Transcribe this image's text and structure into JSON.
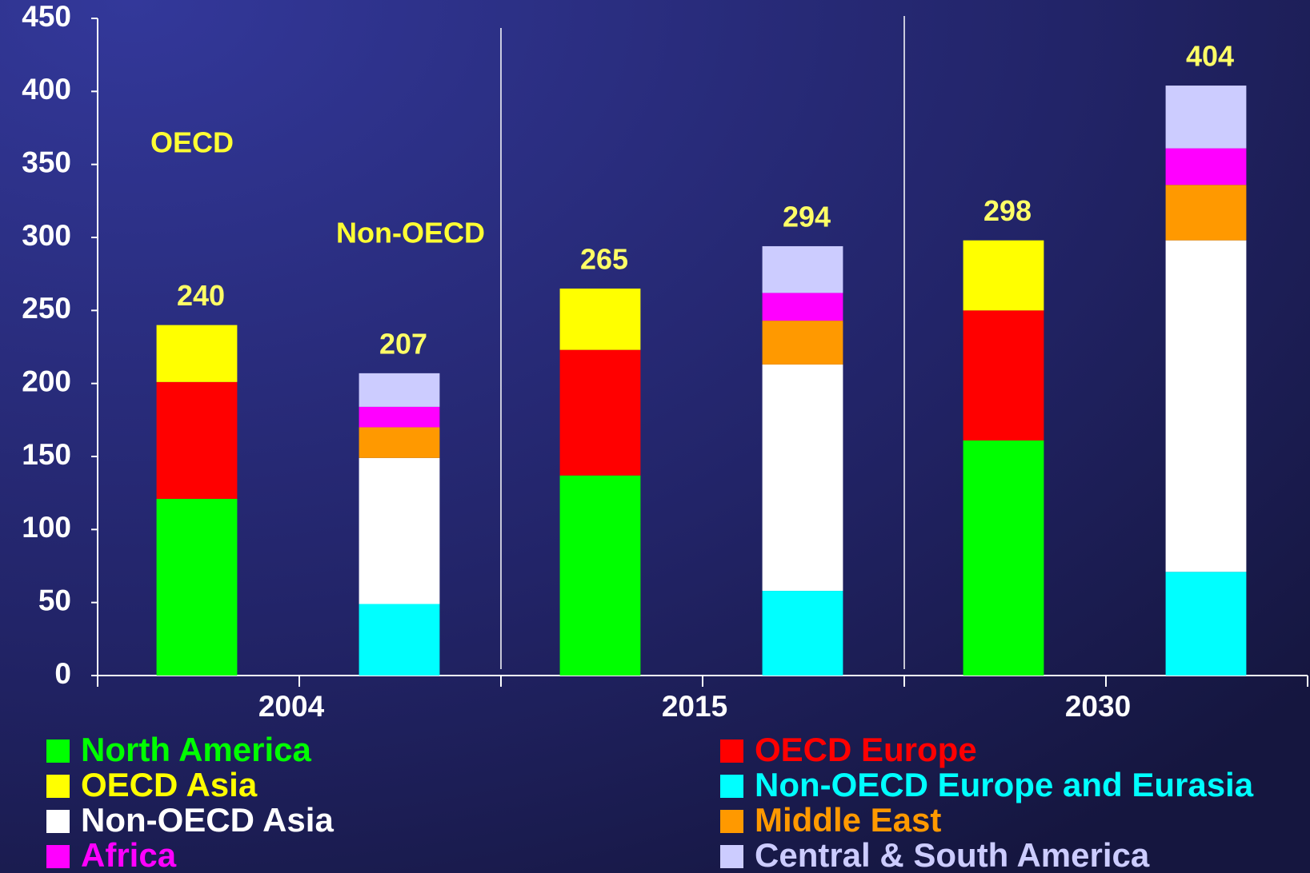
{
  "chart_data": {
    "type": "stacked-bar",
    "categories": [
      "2004",
      "2015",
      "2030"
    ],
    "groups": [
      {
        "name": "OECD",
        "totals": [
          240,
          265,
          298
        ]
      },
      {
        "name": "Non-OECD",
        "totals": [
          207,
          294,
          404
        ]
      }
    ],
    "series": [
      {
        "name": "North America",
        "color": "#00ff00",
        "group": "OECD",
        "values": [
          121,
          137,
          161
        ]
      },
      {
        "name": "OECD Europe",
        "color": "#ff0000",
        "group": "OECD",
        "values": [
          80,
          86,
          89
        ]
      },
      {
        "name": "OECD Asia",
        "color": "#ffff00",
        "group": "OECD",
        "values": [
          39,
          42,
          48
        ]
      },
      {
        "name": "Non-OECD Europe and Eurasia",
        "color": "#00ffff",
        "group": "Non-OECD",
        "values": [
          49,
          58,
          71
        ]
      },
      {
        "name": "Non-OECD Asia",
        "color": "#ffffff",
        "group": "Non-OECD",
        "values": [
          100,
          155,
          227
        ]
      },
      {
        "name": "Middle East",
        "color": "#ff9900",
        "group": "Non-OECD",
        "values": [
          21,
          30,
          38
        ]
      },
      {
        "name": "Africa",
        "color": "#ff00ff",
        "group": "Non-OECD",
        "values": [
          14,
          19,
          25
        ]
      },
      {
        "name": "Central & South America",
        "color": "#ccccff",
        "group": "Non-OECD",
        "values": [
          23,
          32,
          43
        ]
      }
    ],
    "ylim": [
      0,
      450
    ],
    "yticks": [
      0,
      50,
      100,
      150,
      200,
      250,
      300,
      350,
      400,
      450
    ]
  }
}
